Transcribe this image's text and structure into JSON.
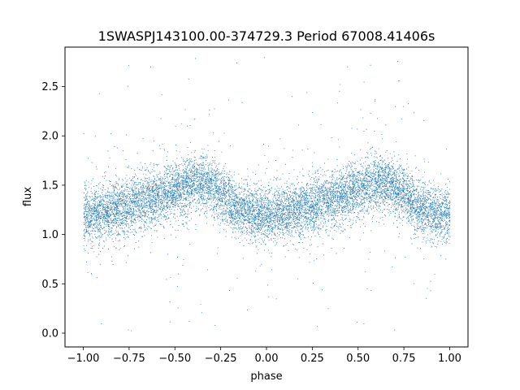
{
  "chart_data": {
    "type": "scatter",
    "title": "1SWASPJ143100.00-374729.3 Period 67008.41406s",
    "xlabel": "phase",
    "ylabel": "flux",
    "xlim": [
      -1.1,
      1.1
    ],
    "ylim": [
      -0.14,
      2.9
    ],
    "grid": false,
    "legend": "none",
    "x_ticks": [
      {
        "value": -1.0,
        "label": "−1.00"
      },
      {
        "value": -0.75,
        "label": "−0.75"
      },
      {
        "value": -0.5,
        "label": "−0.50"
      },
      {
        "value": -0.25,
        "label": "−0.25"
      },
      {
        "value": 0.0,
        "label": "0.00"
      },
      {
        "value": 0.25,
        "label": "0.25"
      },
      {
        "value": 0.5,
        "label": "0.50"
      },
      {
        "value": 0.75,
        "label": "0.75"
      },
      {
        "value": 1.0,
        "label": "1.00"
      }
    ],
    "y_ticks": [
      {
        "value": 0.0,
        "label": "0.0"
      },
      {
        "value": 0.5,
        "label": "0.5"
      },
      {
        "value": 1.0,
        "label": "1.0"
      },
      {
        "value": 1.5,
        "label": "1.5"
      },
      {
        "value": 2.0,
        "label": "2.0"
      },
      {
        "value": 2.5,
        "label": "2.5"
      }
    ],
    "series": [
      {
        "color": "#1f77b4",
        "marker": "dot",
        "x": [
          -1.0,
          -0.95,
          -0.9,
          -0.85,
          -0.8,
          -0.75,
          -0.7,
          -0.65,
          -0.6,
          -0.55,
          -0.5,
          -0.45,
          -0.4,
          -0.35,
          -0.3,
          -0.25,
          -0.2,
          -0.15,
          -0.1,
          -0.05,
          0.0,
          0.05,
          0.1,
          0.15,
          0.2,
          0.25,
          0.3,
          0.35,
          0.4,
          0.45,
          0.5,
          0.55,
          0.6,
          0.65,
          0.7,
          0.75,
          0.8,
          0.85,
          0.9,
          0.95,
          1.0
        ],
        "y": [
          1.2,
          1.21,
          1.23,
          1.25,
          1.27,
          1.3,
          1.33,
          1.36,
          1.39,
          1.42,
          1.45,
          1.49,
          1.52,
          1.52,
          1.48,
          1.42,
          1.33,
          1.26,
          1.22,
          1.21,
          1.2,
          1.21,
          1.23,
          1.25,
          1.27,
          1.3,
          1.33,
          1.36,
          1.39,
          1.42,
          1.45,
          1.49,
          1.52,
          1.52,
          1.48,
          1.42,
          1.33,
          1.26,
          1.22,
          1.21,
          1.2
        ]
      }
    ]
  }
}
